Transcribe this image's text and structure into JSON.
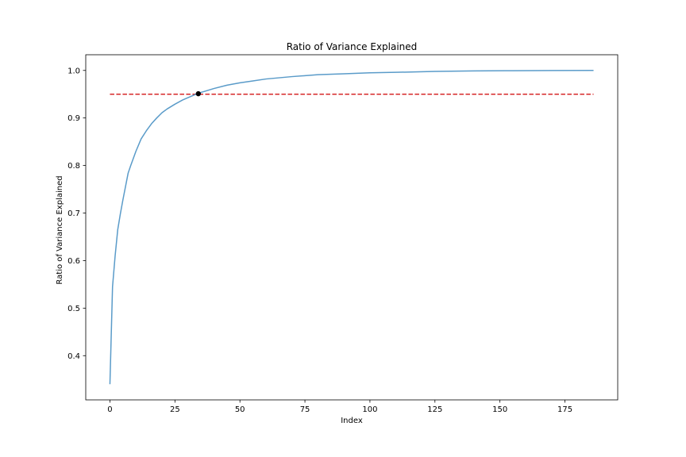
{
  "chart_data": {
    "type": "line",
    "title": "Ratio of Variance Explained",
    "xlabel": "Index",
    "ylabel": "Ratio of Variance Explained",
    "xlim": [
      -9.3,
      195.3
    ],
    "ylim": [
      0.307,
      1.033
    ],
    "xticks": [
      0,
      25,
      50,
      75,
      100,
      125,
      150,
      175
    ],
    "yticks": [
      0.4,
      0.5,
      0.6,
      0.7,
      0.8,
      0.9,
      1.0
    ],
    "ytick_labels": [
      "0.4",
      "0.5",
      "0.6",
      "0.7",
      "0.8",
      "0.9",
      "1.0"
    ],
    "grid": false,
    "series": [
      {
        "color": "#5a9bc9",
        "x": [
          0,
          1,
          2,
          3,
          4,
          5,
          6,
          7,
          8,
          10,
          12,
          14,
          16,
          18,
          20,
          22,
          25,
          28,
          31,
          34,
          37,
          40,
          45,
          50,
          55,
          60,
          70,
          80,
          90,
          100,
          110,
          125,
          140,
          155,
          170,
          186
        ],
        "y": [
          0.34,
          0.545,
          0.61,
          0.665,
          0.698,
          0.728,
          0.756,
          0.784,
          0.8,
          0.83,
          0.856,
          0.873,
          0.888,
          0.9,
          0.911,
          0.919,
          0.929,
          0.938,
          0.945,
          0.952,
          0.957,
          0.962,
          0.969,
          0.974,
          0.978,
          0.982,
          0.987,
          0.991,
          0.993,
          0.995,
          0.996,
          0.998,
          0.999,
          0.9995,
          0.9998,
          1.0
        ]
      }
    ],
    "threshold_line": {
      "y": 0.95,
      "x_start": 0,
      "x_end": 186,
      "color": "#d62728",
      "style": "dashed"
    },
    "highlight_point": {
      "x": 34,
      "y": 0.951,
      "color": "#000000"
    }
  }
}
